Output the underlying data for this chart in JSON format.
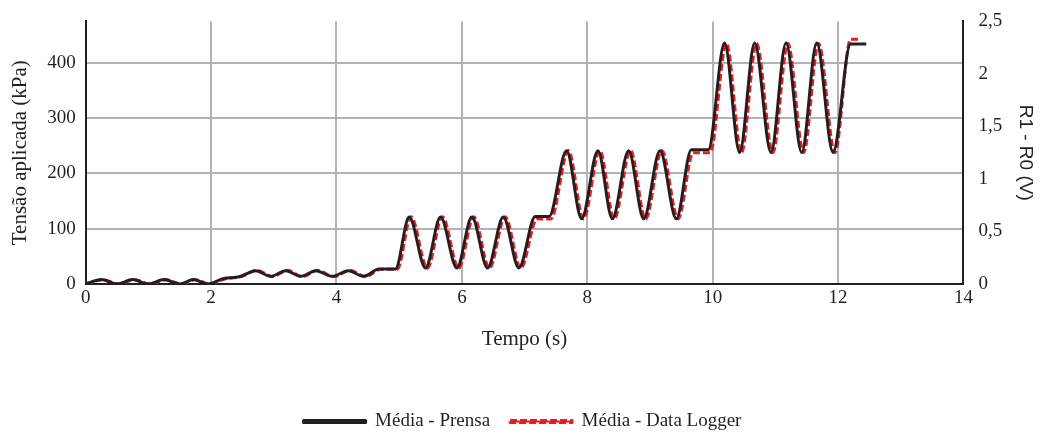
{
  "chart_data": {
    "type": "line",
    "xlabel": "Tempo (s)",
    "ylabel": "Tensão aplicada (kPa)",
    "y2label": "R1 - R0 (V)",
    "xlim": [
      0,
      14
    ],
    "xticks": [
      0,
      2,
      4,
      6,
      8,
      10,
      12,
      14
    ],
    "ylim": [
      0,
      475
    ],
    "yticks": [
      0,
      100,
      200,
      300,
      400
    ],
    "y2lim": [
      0,
      2.5
    ],
    "y2ticks": [
      0,
      {
        "value": 0.5,
        "label": "0,5"
      },
      1,
      {
        "value": 1.5,
        "label": "1,5"
      },
      2,
      {
        "value": 2.5,
        "label": "2,5"
      }
    ],
    "grid": true,
    "legend": "bottom",
    "marker": "none",
    "series": [
      {
        "name": "Média - Prensa",
        "color": "#231f20",
        "line_style": "solid",
        "x": [
          0,
          0.25,
          0.5,
          0.75,
          1.0,
          1.25,
          1.5,
          1.72,
          1.95,
          2.2,
          2.45,
          2.71,
          2.95,
          3.19,
          3.43,
          3.67,
          3.93,
          4.19,
          4.43,
          4.68,
          4.94,
          5.16,
          5.42,
          5.66,
          5.92,
          6.16,
          6.41,
          6.66,
          6.91,
          7.17,
          7.39,
          7.67,
          7.91,
          8.17,
          8.4,
          8.66,
          8.9,
          9.16,
          9.42,
          9.66,
          9.93,
          10.19,
          10.43,
          10.67,
          10.93,
          11.17,
          11.42,
          11.66,
          11.92,
          12.2,
          12.45
        ],
        "values": [
          0,
          8,
          0,
          8,
          0,
          8,
          0,
          8,
          0,
          10,
          13,
          24,
          14,
          24,
          14,
          24,
          14,
          24,
          14,
          27,
          27,
          121,
          29,
          121,
          29,
          121,
          29,
          121,
          29,
          122,
          122,
          241,
          118,
          241,
          118,
          241,
          118,
          241,
          118,
          243,
          243,
          436,
          238,
          436,
          238,
          436,
          238,
          436,
          238,
          434,
          434
        ]
      },
      {
        "name": "Média - Data Logger",
        "color": "#ed1c24",
        "line_style": "dashed",
        "axis": "y2",
        "x": [
          0,
          0.28,
          0.53,
          0.78,
          1.03,
          1.28,
          1.53,
          1.75,
          1.98,
          2.23,
          2.48,
          2.74,
          2.98,
          3.22,
          3.46,
          3.7,
          3.96,
          4.22,
          4.46,
          4.71,
          4.97,
          5.19,
          5.45,
          5.69,
          5.95,
          6.19,
          6.44,
          6.69,
          6.94,
          7.2,
          7.42,
          7.7,
          7.94,
          8.2,
          8.43,
          8.69,
          8.93,
          9.19,
          9.45,
          9.69,
          9.96,
          10.22,
          10.46,
          10.7,
          10.96,
          11.2,
          11.45,
          11.69,
          11.95,
          12.2,
          12.35
        ],
        "values": [
          0,
          0.04,
          0,
          0.04,
          0,
          0.04,
          0,
          0.04,
          0,
          0.05,
          0.07,
          0.13,
          0.07,
          0.13,
          0.07,
          0.13,
          0.07,
          0.13,
          0.07,
          0.14,
          0.14,
          0.64,
          0.15,
          0.64,
          0.15,
          0.64,
          0.15,
          0.64,
          0.15,
          0.62,
          0.62,
          1.27,
          0.62,
          1.27,
          0.62,
          1.27,
          0.62,
          1.27,
          0.62,
          1.25,
          1.25,
          2.29,
          1.25,
          2.29,
          1.25,
          2.29,
          1.25,
          2.29,
          1.25,
          2.33,
          2.33
        ]
      }
    ]
  }
}
